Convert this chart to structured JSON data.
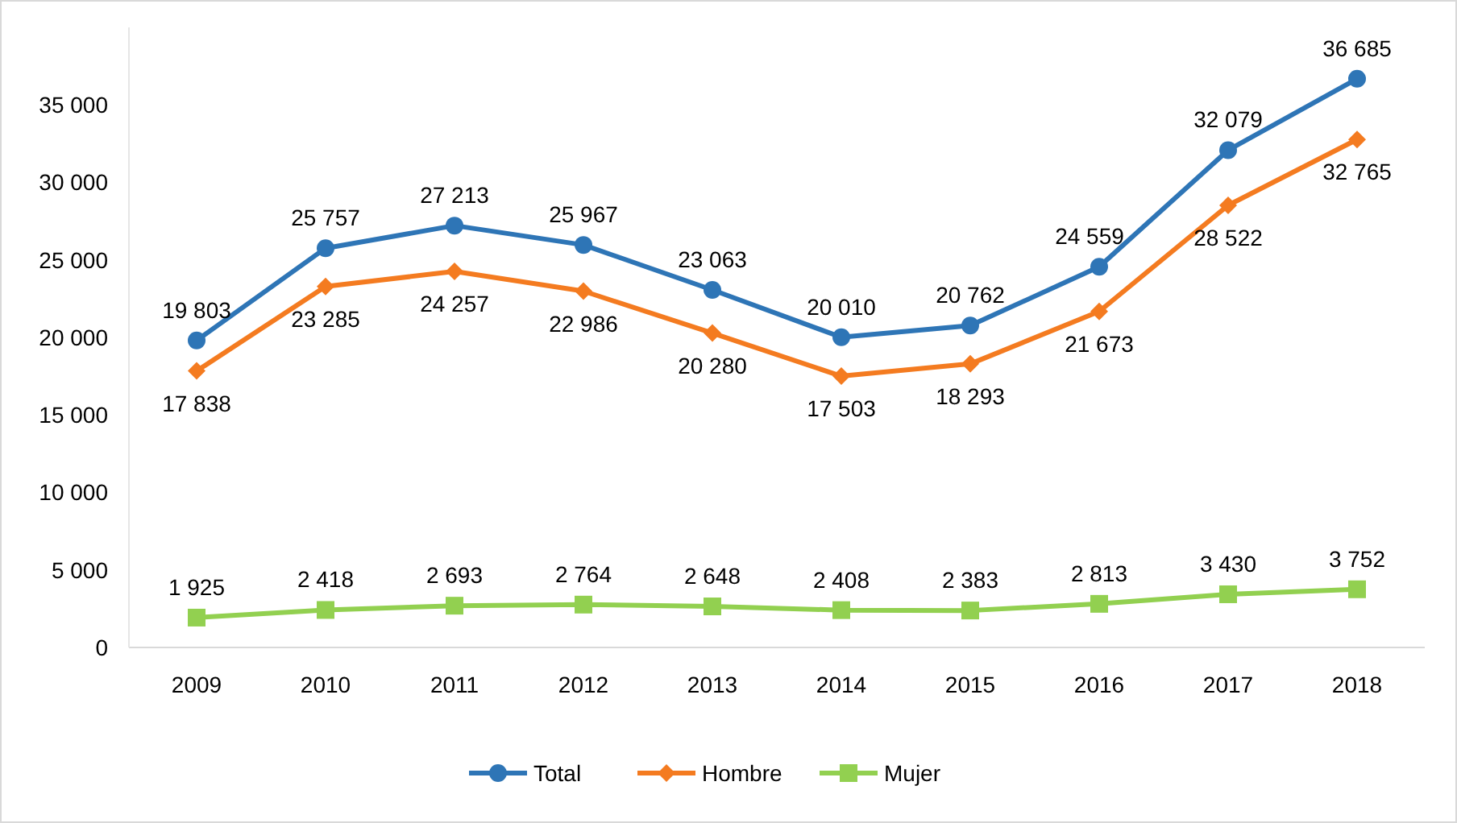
{
  "chart_data": {
    "type": "line",
    "categories": [
      "2009",
      "2010",
      "2011",
      "2012",
      "2013",
      "2014",
      "2015",
      "2016",
      "2017",
      "2018"
    ],
    "series": [
      {
        "name": "Total",
        "color": "#2e75b6",
        "marker": "circle",
        "values": [
          19803,
          25757,
          27213,
          25967,
          23063,
          20010,
          20762,
          24559,
          32079,
          36685
        ],
        "value_labels": [
          "19 803",
          "25 757",
          "27 213",
          "25 967",
          "23 063",
          "20 010",
          "20 762",
          "24 559",
          "32 079",
          "36 685"
        ]
      },
      {
        "name": "Hombre",
        "color": "#f47b20",
        "marker": "diamond",
        "values": [
          17838,
          23285,
          24257,
          22986,
          20280,
          17503,
          18293,
          21673,
          28522,
          32765
        ],
        "value_labels": [
          "17 838",
          "23 285",
          "24 257",
          "22 986",
          "20 280",
          "17 503",
          "18 293",
          "21 673",
          "28 522",
          "32 765"
        ]
      },
      {
        "name": "Mujer",
        "color": "#92d050",
        "marker": "square",
        "values": [
          1925,
          2418,
          2693,
          2764,
          2648,
          2408,
          2383,
          2813,
          3430,
          3752
        ],
        "value_labels": [
          "1 925",
          "2 418",
          "2 693",
          "2 764",
          "2 648",
          "2 408",
          "2 383",
          "2 813",
          "3 430",
          "3 752"
        ]
      }
    ],
    "yticks": [
      0,
      {
        "value": 5000,
        "label": "5 000"
      },
      {
        "value": 10000,
        "label": "10 000"
      },
      {
        "value": 15000,
        "label": "15 000"
      },
      {
        "value": 20000,
        "label": "20 000"
      },
      {
        "value": 25000,
        "label": "25 000"
      },
      {
        "value": 30000,
        "label": "30 000"
      },
      {
        "value": 35000,
        "label": "35 000"
      }
    ],
    "ylim": [
      0,
      40000
    ],
    "grid": false,
    "legend": "bottom",
    "line_style": "solid"
  }
}
